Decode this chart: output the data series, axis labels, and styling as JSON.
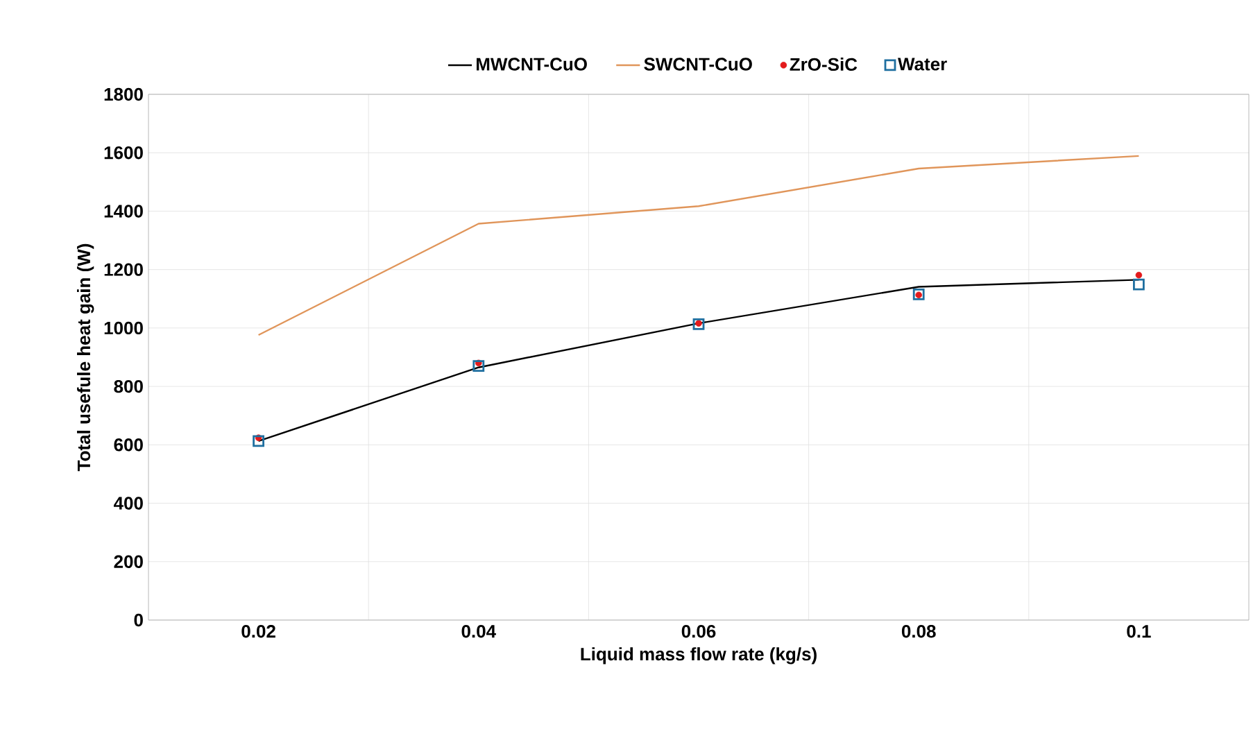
{
  "chart_data": {
    "type": "line",
    "xlabel": "Liquid mass flow rate (kg/s)",
    "ylabel": "Total usefule heat gain (W)",
    "categories": [
      "0.02",
      "0.04",
      "0.06",
      "0.08",
      "0.1"
    ],
    "series": [
      {
        "name": "MWCNT-CuO",
        "type": "line",
        "color": "#000000",
        "marker": "none",
        "values": [
          613,
          865,
          1016,
          1141,
          1165
        ]
      },
      {
        "name": "SWCNT-CuO",
        "type": "line",
        "color": "#e0955a",
        "marker": "none",
        "values": [
          976,
          1357,
          1417,
          1546,
          1589
        ]
      },
      {
        "name": "ZrO-SiC",
        "type": "scatter",
        "color": "#e31a1c",
        "marker": "circle",
        "values": [
          624,
          880,
          1016,
          1113,
          1181
        ]
      },
      {
        "name": "Water",
        "type": "scatter",
        "color": "#1f6fa0",
        "marker": "square",
        "values": [
          613,
          870,
          1013,
          1115,
          1149
        ]
      }
    ],
    "ylim": [
      0,
      1800
    ],
    "yticks": [
      0,
      200,
      400,
      600,
      800,
      1000,
      1200,
      1400,
      1600,
      1800
    ],
    "grid": true,
    "legend": "top"
  }
}
